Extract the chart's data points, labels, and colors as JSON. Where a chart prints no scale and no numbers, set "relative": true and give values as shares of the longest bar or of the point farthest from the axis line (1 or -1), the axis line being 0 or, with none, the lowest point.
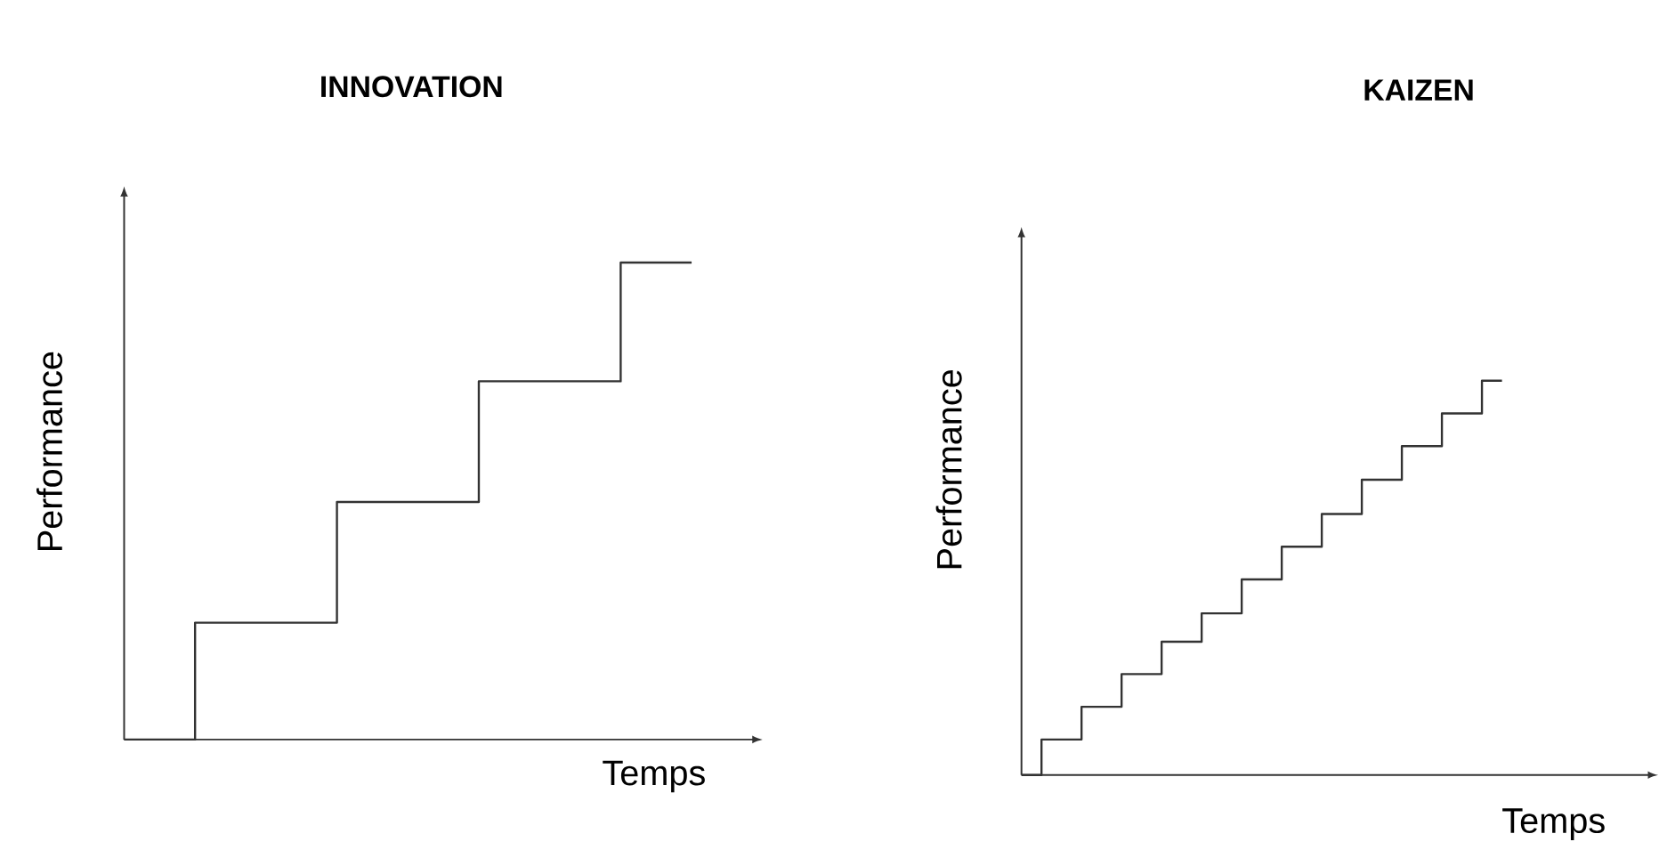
{
  "chart_data": [
    {
      "type": "step",
      "title": "INNOVATION",
      "xlabel": "Temps",
      "ylabel": "Performance",
      "relative": true,
      "color": "#333333",
      "categories": [
        null,
        null,
        null,
        null,
        null,
        null,
        null,
        null,
        null
      ],
      "values": [
        0,
        0.245,
        0.245,
        0.498,
        0.498,
        0.751,
        0.751,
        1,
        1
      ]
    },
    {
      "type": "step",
      "title": "KAIZEN",
      "xlabel": "Temps",
      "ylabel": "Performance",
      "relative": true,
      "color": "#333333",
      "categories": [
        null,
        null,
        null,
        null,
        null,
        null,
        null,
        null,
        null,
        null,
        null,
        null,
        null,
        null,
        null,
        null,
        null,
        null,
        null,
        null,
        null,
        null,
        null,
        null,
        null
      ],
      "values": [
        0,
        0.09,
        0.09,
        0.173,
        0.173,
        0.256,
        0.256,
        0.338,
        0.338,
        0.41,
        0.41,
        0.496,
        0.496,
        0.579,
        0.579,
        0.662,
        0.662,
        0.749,
        0.749,
        0.834,
        0.834,
        0.917,
        0.917,
        1,
        1
      ]
    }
  ]
}
